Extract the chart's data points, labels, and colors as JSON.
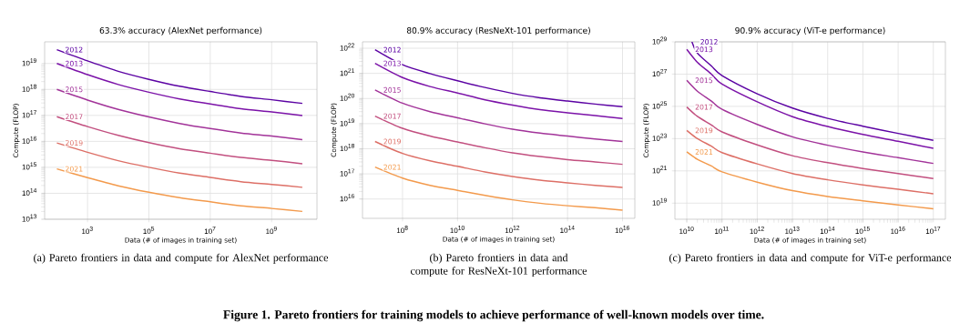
{
  "chart_data": [
    {
      "type": "line",
      "title": "63.3% accuracy (AlexNet performance)",
      "xlabel": "Data (# of images in training set)",
      "ylabel": "Compute (FLOP)",
      "log": "xy",
      "grid": true,
      "legend": false,
      "x": [
        100.0,
        1000.0,
        10000.0,
        100000.0,
        1000000.0,
        10000000.0,
        100000000.0,
        1000000000.0,
        10000000000.0
      ],
      "xlim": [
        40.0,
        30000000000.0
      ],
      "ylim": [
        10000000000000.0,
        6.8e+19
      ],
      "xticks": [
        {
          "value": 1000.0,
          "label": "10$^{3}$"
        },
        {
          "value": 100000.0,
          "label": "10$^{5}$"
        },
        {
          "value": 10000000.0,
          "label": "10$^{7}$"
        },
        {
          "value": 1000000000.0,
          "label": "10$^{9}$"
        }
      ],
      "yticks": [
        {
          "value": 10000000000000.0,
          "label": "10$^{13}$"
        },
        {
          "value": 100000000000000.0,
          "label": "10$^{14}$"
        },
        {
          "value": 1000000000000000.0,
          "label": "10$^{15}$"
        },
        {
          "value": 1e+16,
          "label": "10$^{16}$"
        },
        {
          "value": 1e+17,
          "label": "10$^{17}$"
        },
        {
          "value": 1e+18,
          "label": "10$^{18}$"
        },
        {
          "value": 1e+19,
          "label": "10$^{19}$"
        }
      ],
      "series": [
        {
          "name": "2012",
          "color": "#5b02a3",
          "values": [
            3.4e+19,
            1.26e+19,
            5e+18,
            2.45e+18,
            1.32e+18,
            8.3e+17,
            5.4e+17,
            4e+17,
            2.9e+17
          ]
        },
        {
          "name": "2013",
          "color": "#7b12a8",
          "values": [
            1e+19,
            3.7e+18,
            1.55e+18,
            7.8e+17,
            4.3e+17,
            2.75e+17,
            1.8e+17,
            1.35e+17,
            9.8e+16
          ]
        },
        {
          "name": "2015",
          "color": "#a23399",
          "values": [
            1e+18,
            3.9e+17,
            1.7e+17,
            8.7e+16,
            4.9e+16,
            3.1e+16,
            2.1e+16,
            1.6e+16,
            1.17e+16
          ]
        },
        {
          "name": "2017",
          "color": "#c24f7f",
          "values": [
            8.9e+16,
            3.7e+16,
            1.7e+16,
            8900000000000000.0,
            5200000000000000.0,
            3500000000000000.0,
            2400000000000000.0,
            1860000000000000.0,
            1380000000000000.0
          ]
        },
        {
          "name": "2019",
          "color": "#dd6f66",
          "values": [
            8700000000000000.0,
            3800000000000000.0,
            1800000000000000.0,
            1000000000000000.0,
            600000000000000.0,
            410000000000000.0,
            280000000000000.0,
            220000000000000.0,
            170000000000000.0
          ]
        },
        {
          "name": "2021",
          "color": "#f39a4c",
          "values": [
            870000000000000.0,
            400000000000000.0,
            195000000000000.0,
            110000000000000.0,
            68000000000000.0,
            47000000000000.0,
            33000000000000.0,
            26000000000000.0,
            20000000000000.0
          ]
        }
      ],
      "annotations": [
        "(a) Pareto frontiers in data and compute for AlexNet performance",
        "Figure 1. Pareto frontiers for training models to achieve performance of well-known models over time."
      ]
    },
    {
      "type": "line",
      "title": "80.9% accuracy (ResNeXt-101 performance)",
      "xlabel": "Data (# of images in training set)",
      "ylabel": "Compute (FLOP)",
      "log": "xy",
      "grid": true,
      "legend": false,
      "x": [
        10000000.0,
        100000000.0,
        1000000000.0,
        10000000000.0,
        100000000000.0,
        1000000000000.0,
        10000000000000.0,
        100000000000000.0,
        1000000000000000.0,
        1e+16
      ],
      "xlim": [
        3500000.0,
        2.8e+16
      ],
      "ylim": [
        1700000000000000.0,
        1.8e+22
      ],
      "xticks": [
        {
          "value": 100000000.0,
          "label": "10$^{8}$"
        },
        {
          "value": 10000000000.0,
          "label": "10$^{10}$"
        },
        {
          "value": 1000000000000.0,
          "label": "10$^{12}$"
        },
        {
          "value": 100000000000000.0,
          "label": "10$^{14}$"
        },
        {
          "value": 1e+16,
          "label": "10$^{16}$"
        }
      ],
      "yticks": [
        {
          "value": 1e+16,
          "label": "10$^{16}$"
        },
        {
          "value": 1e+17,
          "label": "10$^{17}$"
        },
        {
          "value": 1e+18,
          "label": "10$^{18}$"
        },
        {
          "value": 1e+19,
          "label": "10$^{19}$"
        },
        {
          "value": 1e+20,
          "label": "10$^{20}$"
        },
        {
          "value": 1e+21,
          "label": "10$^{21}$"
        },
        {
          "value": 1e+22,
          "label": "10$^{22}$"
        }
      ],
      "series": [
        {
          "name": "2012",
          "color": "#5b02a3",
          "values": [
            8.7e+21,
            2.2e+21,
            9.8e+20,
            5.1e+20,
            2.75e+20,
            1.6e+20,
            1.07e+20,
            7.9e+19,
            6e+19,
            4.7e+19
          ]
        },
        {
          "name": "2013",
          "color": "#7b12a8",
          "values": [
            2.5e+21,
            6.8e+20,
            3e+20,
            1.66e+20,
            8.9e+19,
            5.5e+19,
            3.6e+19,
            2.7e+19,
            2.1e+19,
            1.6e+19
          ]
        },
        {
          "name": "2015",
          "color": "#a23399",
          "values": [
            2.2e+20,
            6.5e+19,
            3e+19,
            1.7e+19,
            9.8e+18,
            6e+18,
            4.2e+18,
            3.2e+18,
            2.45e+18,
            1.95e+18
          ]
        },
        {
          "name": "2017",
          "color": "#c24f7f",
          "values": [
            2e+19,
            6.5e+18,
            3.2e+18,
            1.86e+18,
            1.1e+18,
            6.9e+17,
            4.9e+17,
            3.7e+17,
            3e+17,
            2.4e+17
          ]
        },
        {
          "name": "2019",
          "color": "#dd6f66",
          "values": [
            1.95e+18,
            6.5e+17,
            3.3e+17,
            2e+17,
            1.2e+17,
            7.9e+16,
            5.6e+16,
            4.4e+16,
            3.5e+16,
            2.9e+16
          ]
        },
        {
          "name": "2021",
          "color": "#f39a4c",
          "values": [
            1.86e+17,
            6.8e+16,
            3.5e+16,
            2.2e+16,
            1.4e+16,
            9300000000000000.0,
            6800000000000000.0,
            5400000000000000.0,
            4500000000000000.0,
            3600000000000000.0
          ]
        }
      ],
      "annotations": [
        "(b) Pareto frontiers in data and compute for ResNeXt-101 performance"
      ]
    },
    {
      "type": "line",
      "title": "90.9% accuracy (ViT-e performance)",
      "xlabel": "Data (# of images in training set)",
      "ylabel": "Compute (FLOP)",
      "log": "xy",
      "grid": true,
      "legend": false,
      "x": [
        10000000000.0,
        20000000000.0,
        50000000000.0,
        100000000000.0,
        1000000000000.0,
        10000000000000.0,
        100000000000000.0,
        1000000000000000.0,
        1e+16,
        1e+17
      ],
      "xlim": [
        4600000000.0,
        2.2e+17
      ],
      "ylim": [
        1e+18,
        1e+29
      ],
      "xticks": [
        {
          "value": 10000000000.0,
          "label": "10$^{10}$"
        },
        {
          "value": 100000000000.0,
          "label": "10$^{11}$"
        },
        {
          "value": 1000000000000.0,
          "label": "10$^{12}$"
        },
        {
          "value": 10000000000000.0,
          "label": "10$^{13}$"
        },
        {
          "value": 100000000000000.0,
          "label": "10$^{14}$"
        },
        {
          "value": 1000000000000000.0,
          "label": "10$^{15}$"
        },
        {
          "value": 1e+16,
          "label": "10$^{16}$"
        },
        {
          "value": 1e+17,
          "label": "10$^{17}$"
        }
      ],
      "yticks": [
        {
          "value": 1e+19,
          "label": "10$^{19}$"
        },
        {
          "value": 1e+21,
          "label": "10$^{21}$"
        },
        {
          "value": 1e+23,
          "label": "10$^{23}$"
        },
        {
          "value": 1e+25,
          "label": "10$^{25}$"
        },
        {
          "value": 1e+27,
          "label": "10$^{27}$"
        },
        {
          "value": 1e+29,
          "label": "10$^{29}$"
        }
      ],
      "series": [
        {
          "name": "2012",
          "color": "#5b02a3",
          "x": [
            14000000000.0,
            20000000000.0,
            50000000000.0,
            100000000000.0,
            1000000000000.0,
            10000000000000.0,
            100000000000000.0,
            1000000000000000.0,
            1e+16,
            1e+17
          ],
          "values": [
            1e+29,
            2e+28,
            3.2e+27,
            8.1e+26,
            6e+25,
            7.8e+24,
            1.8e+24,
            5.9e+23,
            2.1e+23,
            7.8e+22
          ]
        },
        {
          "name": "2013",
          "color": "#7b12a8",
          "values": [
            3.4e+28,
            5.4e+27,
            1e+27,
            2.4e+26,
            1.9e+25,
            2.3e+24,
            5.6e+23,
            1.8e+23,
            6.8e+22,
            2.5e+22
          ]
        },
        {
          "name": "2015",
          "color": "#a23399",
          "values": [
            4.1e+26,
            8.7e+25,
            2.1e+25,
            6.5e+24,
            7.6e+23,
            1.3e+23,
            3.9e+22,
            1.5e+22,
            6.6e+21,
            2.9e+21
          ]
        },
        {
          "name": "2017",
          "color": "#c24f7f",
          "values": [
            9.1e+24,
            2.4e+24,
            7.1e+23,
            2.6e+23,
            4.1e+22,
            8.7e+21,
            3.2e+21,
            1.4e+21,
            6.8e+20,
            3.3e+20
          ]
        },
        {
          "name": "2019",
          "color": "#dd6f66",
          "values": [
            3.2e+23,
            1e+23,
            3.4e+22,
            1.35e+22,
            2.7e+21,
            6.9e+20,
            2.8e+20,
            1.35e+20,
            7.2e+19,
            3.8e+19
          ]
        },
        {
          "name": "2021",
          "color": "#f39a4c",
          "values": [
            1.5e+22,
            5.2e+21,
            2e+21,
            8.7e+20,
            2e+20,
            5.9e+19,
            2.6e+19,
            1.4e+19,
            7.8e+18,
            4.4e+18
          ]
        }
      ],
      "annotations": [
        "(c) Pareto frontiers in data and compute for ViT-e performance"
      ]
    }
  ]
}
